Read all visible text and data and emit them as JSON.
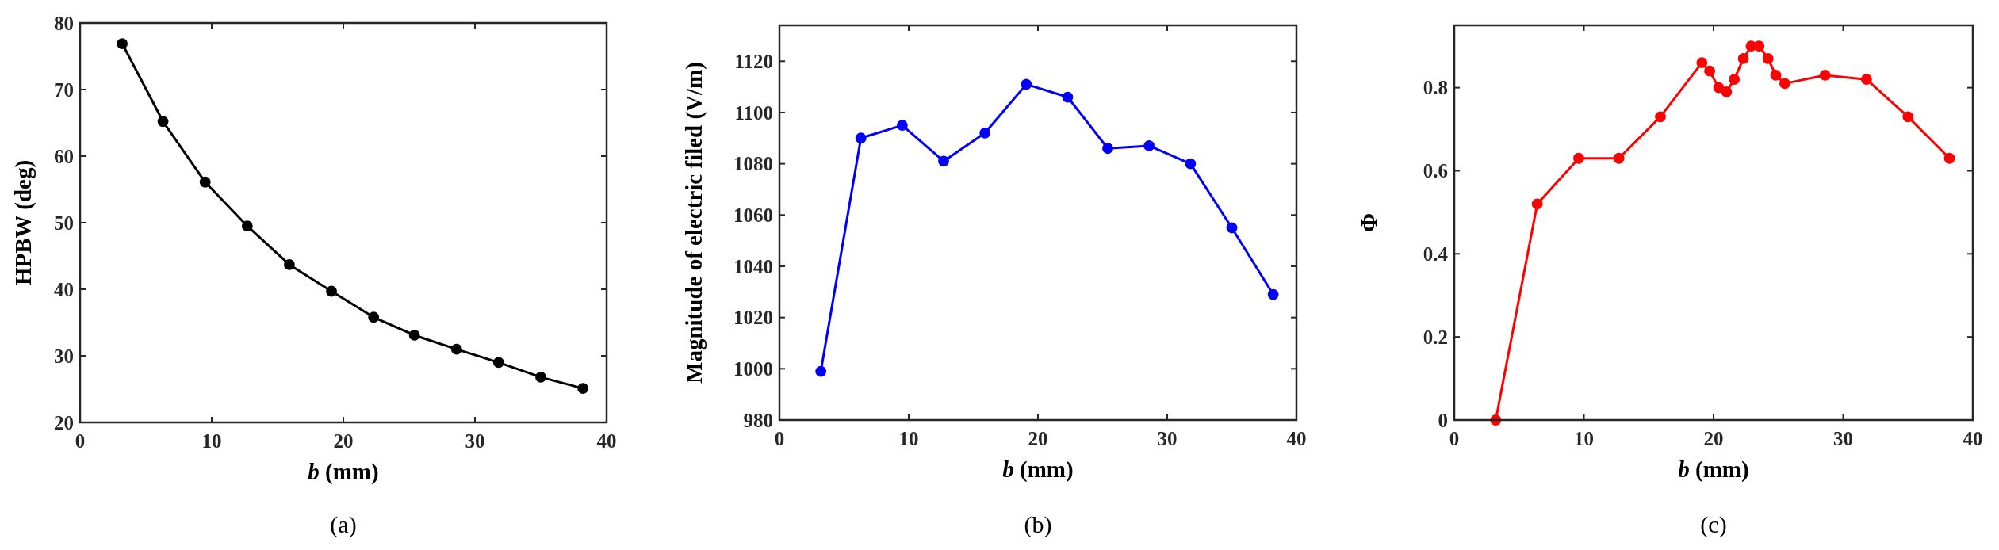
{
  "chart_data": [
    {
      "type": "line",
      "xlabel": "b (mm)",
      "ylabel": "HPBW (deg)",
      "annotations": [
        "(a)"
      ],
      "x": [
        3.2,
        6.3,
        9.5,
        12.7,
        15.9,
        19.1,
        22.3,
        25.4,
        28.6,
        31.8,
        35.0,
        38.2
      ],
      "series": [
        {
          "color": "#000000",
          "values": [
            76.9,
            65.2,
            56.1,
            49.5,
            43.7,
            39.7,
            35.8,
            33.1,
            31.0,
            29.0,
            26.8,
            25.1
          ]
        }
      ],
      "xlim": [
        0,
        40
      ],
      "xticks": [
        0,
        10,
        20,
        30,
        40
      ],
      "ylim": [
        20,
        80
      ],
      "yticks": [
        20,
        30,
        40,
        50,
        60,
        70,
        80
      ],
      "grid": false,
      "marker": "circle",
      "line_style": "solid"
    },
    {
      "type": "line",
      "xlabel": "b (mm)",
      "ylabel": "Magnitude of electric filed (V/m)",
      "annotations": [
        "(b)"
      ],
      "x": [
        3.2,
        6.3,
        9.5,
        12.7,
        15.9,
        19.1,
        22.3,
        25.4,
        28.6,
        31.8,
        35.0,
        38.2
      ],
      "series": [
        {
          "color": "#0000ff",
          "values": [
            999,
            1090,
            1095,
            1081,
            1092,
            1111,
            1106,
            1086,
            1087,
            1080,
            1055,
            1029
          ]
        }
      ],
      "xlim": [
        0,
        40
      ],
      "xticks": [
        0,
        10,
        20,
        30,
        40
      ],
      "ylim": [
        980,
        1134
      ],
      "yticks": [
        980,
        1000,
        1020,
        1040,
        1060,
        1080,
        1100,
        1120
      ],
      "grid": false,
      "marker": "circle",
      "line_style": "solid"
    },
    {
      "type": "line",
      "xlabel": "b (mm)",
      "ylabel": "Φ",
      "annotations": [
        "(c)"
      ],
      "x": [
        3.2,
        6.4,
        9.6,
        12.7,
        15.9,
        19.1,
        19.7,
        20.4,
        21.0,
        21.6,
        22.3,
        22.9,
        23.5,
        24.2,
        24.8,
        25.5,
        28.6,
        31.8,
        35.0,
        38.2
      ],
      "series": [
        {
          "color": "#ff0000",
          "values": [
            0,
            0.52,
            0.63,
            0.63,
            0.73,
            0.86,
            0.84,
            0.8,
            0.79,
            0.82,
            0.87,
            0.9,
            0.9,
            0.87,
            0.83,
            0.81,
            0.83,
            0.82,
            0.73,
            0.63
          ]
        }
      ],
      "xlim": [
        0,
        40
      ],
      "xticks": [
        0,
        10,
        20,
        30,
        40
      ],
      "ylim": [
        0,
        0.95
      ],
      "yticks": [
        0,
        0.2,
        0.4,
        0.6,
        0.8
      ],
      "grid": false,
      "marker": "circle",
      "line_style": "solid"
    }
  ]
}
